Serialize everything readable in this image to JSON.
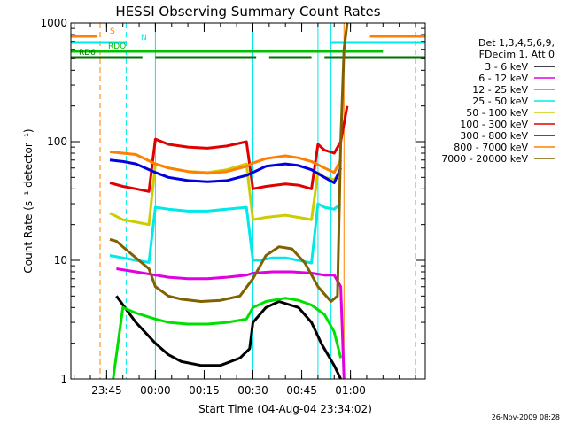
{
  "chart_data": {
    "type": "line",
    "title": "HESSI Observing Summary Count Rates",
    "xlabel": "Start Time (04-Aug-04 23:34:02)",
    "ylabel": "Count Rate (s⁻¹ detector⁻¹)",
    "y_scale": "log",
    "ylim": [
      1,
      1000
    ],
    "xlim_minutes_from_start": [
      0,
      109
    ],
    "x_tick_labels": [
      {
        "label": "23:45",
        "t": 11
      },
      {
        "label": "00:00",
        "t": 26
      },
      {
        "label": "00:15",
        "t": 41
      },
      {
        "label": "00:30",
        "t": 56
      },
      {
        "label": "00:45",
        "t": 71
      },
      {
        "label": "01:00",
        "t": 86
      }
    ],
    "y_tick_labels": [
      {
        "label": "1",
        "value": 1
      },
      {
        "label": "10",
        "value": 10
      },
      {
        "label": "100",
        "value": 100
      },
      {
        "label": "1000",
        "value": 1000
      }
    ],
    "legend_header": [
      "Det 1,3,4,5,6,9,",
      "FDecim 1, Att 0"
    ],
    "series": [
      {
        "name": "3 - 6 keV",
        "color": "#000000",
        "x": [
          14,
          20,
          26,
          30,
          34,
          40,
          46,
          52,
          55,
          56,
          60,
          64,
          70,
          74,
          77,
          81,
          83
        ],
        "y": [
          5.0,
          3.0,
          2.0,
          1.6,
          1.4,
          1.3,
          1.3,
          1.5,
          1.8,
          3.0,
          4.0,
          4.5,
          4.0,
          3.0,
          2.0,
          1.3,
          1.0
        ]
      },
      {
        "name": "6 - 12 keV",
        "color": "#e000e0",
        "x": [
          14,
          20,
          26,
          30,
          36,
          42,
          48,
          54,
          56,
          62,
          68,
          74,
          78,
          81,
          83,
          84
        ],
        "y": [
          8.5,
          8.0,
          7.5,
          7.2,
          7.0,
          7.0,
          7.2,
          7.5,
          7.8,
          8.0,
          8.0,
          7.8,
          7.5,
          7.5,
          6.0,
          1.0
        ]
      },
      {
        "name": "12 - 25 keV",
        "color": "#00e000",
        "x": [
          13,
          16,
          20,
          26,
          30,
          36,
          42,
          48,
          54,
          56,
          60,
          66,
          70,
          74,
          78,
          81,
          83
        ],
        "y": [
          1.0,
          4.0,
          3.6,
          3.2,
          3.0,
          2.9,
          2.9,
          3.0,
          3.2,
          4.0,
          4.5,
          4.8,
          4.6,
          4.2,
          3.5,
          2.5,
          1.5
        ]
      },
      {
        "name": "25 - 50 keV",
        "color": "#00e8e8",
        "x": [
          12,
          16,
          20,
          24,
          26,
          30,
          36,
          42,
          48,
          54,
          56,
          58,
          62,
          66,
          70,
          74,
          76,
          78,
          81,
          83
        ],
        "y": [
          11,
          10.5,
          10,
          9.6,
          28,
          27,
          26,
          26,
          27,
          28,
          10,
          10,
          10.5,
          10.5,
          10,
          9.5,
          30,
          28,
          27,
          30
        ]
      },
      {
        "name": "50 - 100 keV",
        "color": "#cccc00",
        "x": [
          12,
          16,
          20,
          24,
          26,
          30,
          36,
          42,
          48,
          54,
          56,
          60,
          66,
          70,
          74,
          76,
          78,
          81,
          83
        ],
        "y": [
          25,
          22,
          21,
          20,
          65,
          60,
          56,
          55,
          58,
          65,
          22,
          23,
          24,
          23,
          22,
          55,
          50,
          48,
          55
        ]
      },
      {
        "name": "100 - 300 keV",
        "color": "#e00000",
        "x": [
          12,
          16,
          20,
          24,
          26,
          30,
          36,
          42,
          48,
          54,
          56,
          60,
          66,
          70,
          74,
          76,
          78,
          81,
          83,
          85
        ],
        "y": [
          45,
          42,
          40,
          38,
          105,
          95,
          90,
          88,
          92,
          100,
          40,
          42,
          44,
          43,
          40,
          95,
          85,
          80,
          100,
          200
        ]
      },
      {
        "name": "300 - 800 keV",
        "color": "#0000e0",
        "x": [
          12,
          16,
          20,
          26,
          30,
          36,
          42,
          48,
          54,
          56,
          60,
          66,
          70,
          74,
          78,
          81,
          83
        ],
        "y": [
          70,
          68,
          65,
          55,
          50,
          47,
          46,
          47,
          52,
          55,
          62,
          65,
          63,
          58,
          50,
          45,
          60
        ]
      },
      {
        "name": "800 - 7000 keV",
        "color": "#ff8000",
        "x": [
          12,
          16,
          20,
          26,
          30,
          36,
          42,
          48,
          54,
          56,
          60,
          66,
          70,
          74,
          78,
          81,
          83
        ],
        "y": [
          82,
          80,
          78,
          65,
          60,
          56,
          54,
          56,
          62,
          66,
          72,
          76,
          73,
          68,
          60,
          55,
          70
        ]
      },
      {
        "name": "7000 - 20000 keV",
        "color": "#806000",
        "x": [
          12,
          14,
          16,
          20,
          24,
          26,
          30,
          34,
          40,
          46,
          52,
          56,
          60,
          64,
          68,
          72,
          76,
          80,
          82,
          83,
          84,
          85
        ],
        "y": [
          15,
          14.5,
          13,
          10.5,
          8.5,
          6.0,
          5.0,
          4.7,
          4.5,
          4.6,
          5.0,
          7.0,
          11,
          13,
          12.5,
          9.5,
          6.0,
          4.5,
          5.0,
          100,
          600,
          1000
        ]
      }
    ],
    "flags": [
      {
        "label": "S",
        "color": "#ff8000",
        "segments": [
          [
            0,
            8
          ],
          [
            92,
            109
          ]
        ]
      },
      {
        "label": "N",
        "color": "#00e8e8",
        "segments": [
          [
            0,
            17
          ],
          [
            80,
            109
          ]
        ]
      },
      {
        "label": "RDO",
        "color": "#00c000",
        "segments": [
          [
            0,
            96
          ]
        ]
      },
      {
        "label": "RD6",
        "color": "#007000",
        "segments": [
          [
            0,
            22
          ],
          [
            26,
            57
          ],
          [
            61,
            74
          ],
          [
            78,
            109
          ]
        ]
      }
    ],
    "vertical_markers": [
      {
        "t": 9,
        "color": "#ff8000",
        "style": "dashed"
      },
      {
        "t": 17,
        "color": "#00e8e8",
        "style": "dashed"
      },
      {
        "t": 26,
        "color": "#00e8e8",
        "style": "solid"
      },
      {
        "t": 56,
        "color": "#00e8e8",
        "style": "solid"
      },
      {
        "t": 76,
        "color": "#00e8e8",
        "style": "solid"
      },
      {
        "t": 80,
        "color": "#00e8e8",
        "style": "solid"
      },
      {
        "t": 84,
        "color": "#ff8000",
        "style": "solid"
      },
      {
        "t": 106,
        "color": "#ff8000",
        "style": "dashed"
      }
    ],
    "footer_timestamp": "26-Nov-2009 08:28"
  }
}
